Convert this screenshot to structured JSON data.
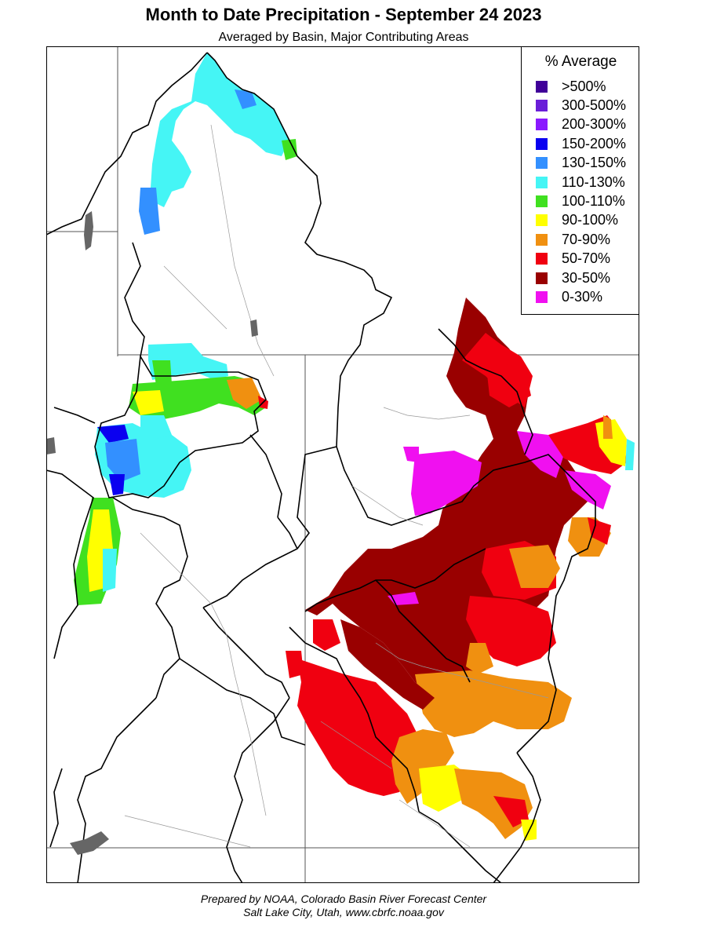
{
  "title": "Month to Date Precipitation - September 24 2023",
  "subtitle": "Averaged by Basin, Major Contributing Areas",
  "legend": {
    "title": "% Average",
    "items": [
      {
        "label": ">500%",
        "color": "#400099"
      },
      {
        "label": "300-500%",
        "color": "#6a1ed8"
      },
      {
        "label": "200-300%",
        "color": "#8a1aff"
      },
      {
        "label": "150-200%",
        "color": "#0a00f0"
      },
      {
        "label": "130-150%",
        "color": "#3390ff"
      },
      {
        "label": "110-130%",
        "color": "#45f5f5"
      },
      {
        "label": "100-110%",
        "color": "#40e020"
      },
      {
        "label": "90-100%",
        "color": "#ffff00"
      },
      {
        "label": "70-90%",
        "color": "#f09010"
      },
      {
        "label": "50-70%",
        "color": "#f00010"
      },
      {
        "label": "30-50%",
        "color": "#990000"
      },
      {
        "label": "0-30%",
        "color": "#f010f0"
      }
    ]
  },
  "footer": {
    "line1": "Prepared by NOAA, Colorado Basin River Forecast Center",
    "line2": "Salt Lake City, Utah, www.cbrfc.noaa.gov"
  }
}
